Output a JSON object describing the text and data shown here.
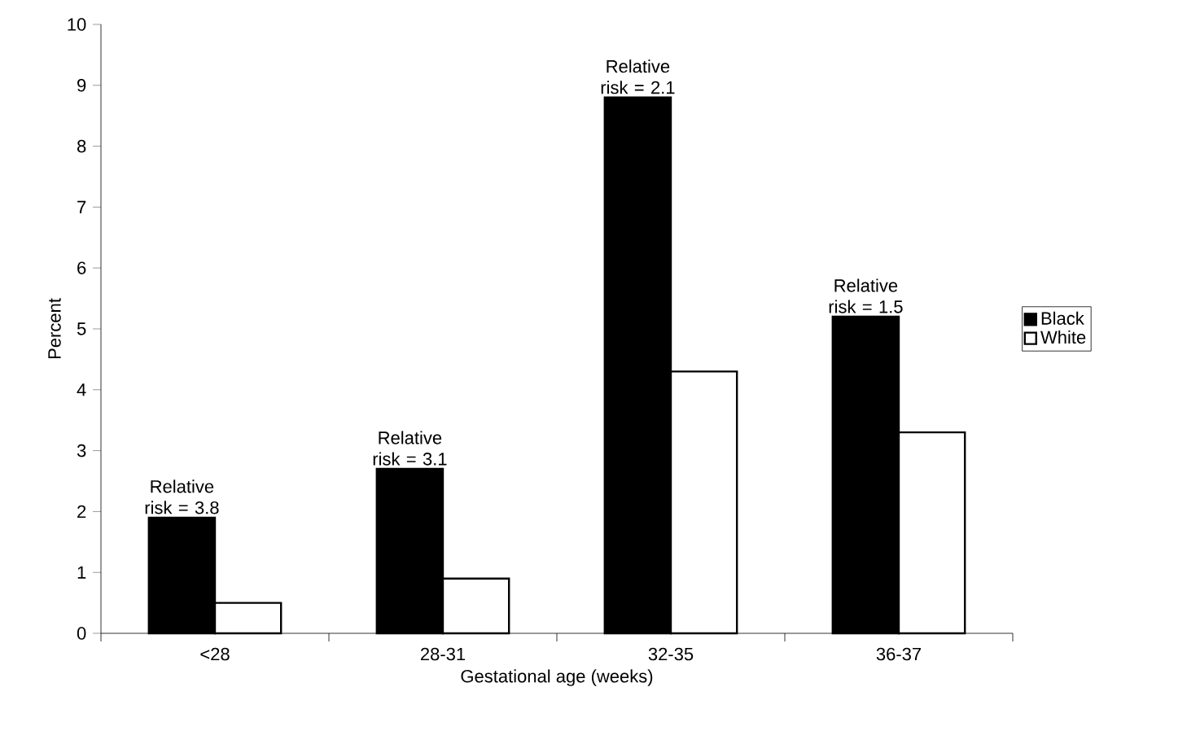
{
  "chart_data": {
    "type": "bar",
    "xlabel": "Gestational age (weeks)",
    "ylabel": "Percent",
    "categories": [
      "<28",
      "28-31",
      "32-35",
      "36-37"
    ],
    "series": [
      {
        "name": "Black",
        "color": "#000000",
        "values": [
          1.9,
          2.7,
          8.8,
          5.2
        ]
      },
      {
        "name": "White",
        "color": "#ffffff",
        "values": [
          0.5,
          0.9,
          4.3,
          3.3
        ]
      }
    ],
    "ylim": [
      0,
      10
    ],
    "yticks": [
      0,
      1,
      2,
      3,
      4,
      5,
      6,
      7,
      8,
      9,
      10
    ],
    "annotations": [
      {
        "text": "Relative risk = 3.8",
        "x": "<28",
        "y": 1.9
      },
      {
        "text": "Relative risk = 3.1",
        "x": "28-31",
        "y": 2.7
      },
      {
        "text": "Relative risk = 2.1",
        "x": "32-35",
        "y": 8.8
      },
      {
        "text": "Relative risk = 1.5",
        "x": "36-37",
        "y": 5.2
      }
    ],
    "legend": "right",
    "grid": false
  }
}
